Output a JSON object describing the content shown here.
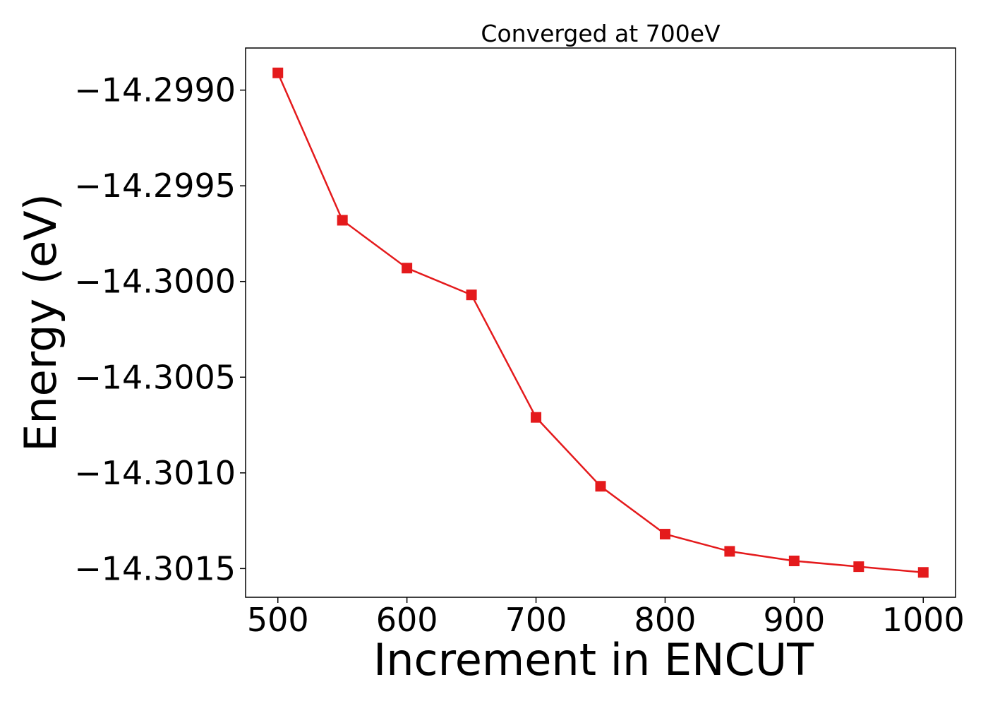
{
  "chart_data": {
    "type": "line",
    "title": "Converged at 700eV",
    "xlabel": "Increment in ENCUT",
    "ylabel": "Energy (eV)",
    "x": [
      500,
      550,
      600,
      650,
      700,
      750,
      800,
      850,
      900,
      950,
      1000
    ],
    "series": [
      {
        "values": [
          -14.29891,
          -14.29968,
          -14.29993,
          -14.30007,
          -14.30071,
          -14.30107,
          -14.30132,
          -14.30141,
          -14.30146,
          -14.30149,
          -14.30152
        ],
        "color": "#e41a1c",
        "marker": "square"
      }
    ],
    "xticks": [
      500,
      600,
      700,
      800,
      900,
      1000
    ],
    "xtick_labels": [
      "500",
      "600",
      "700",
      "800",
      "900",
      "1000"
    ],
    "yticks": [
      -14.299,
      -14.2995,
      -14.3,
      -14.3005,
      -14.301,
      -14.3015
    ],
    "ytick_labels": [
      "−14.2990",
      "−14.2995",
      "−14.3000",
      "−14.3005",
      "−14.3010",
      "−14.3015"
    ],
    "xlim": [
      475,
      1025
    ],
    "ylim": [
      -14.30165,
      -14.29878
    ],
    "grid": false,
    "legend": "none"
  }
}
